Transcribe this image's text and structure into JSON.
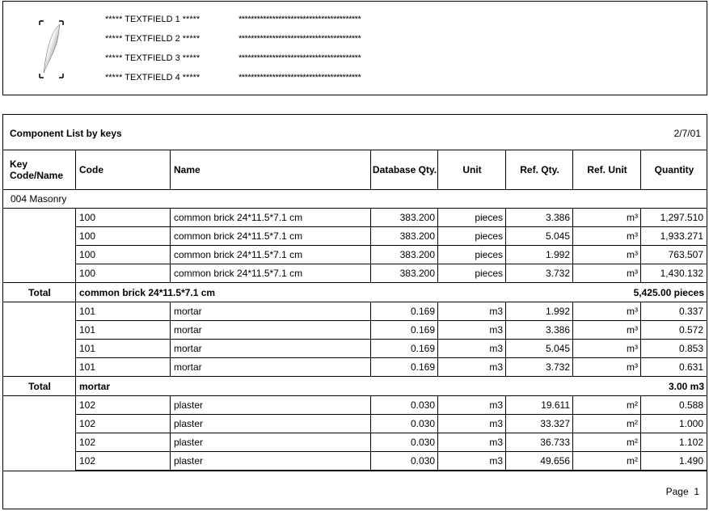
{
  "header": {
    "logo_icon": "feather-quill-icon",
    "fields": [
      {
        "label": "***** TEXTFIELD 1 *****",
        "value": "****************************************"
      },
      {
        "label": "***** TEXTFIELD 2 *****",
        "value": "****************************************"
      },
      {
        "label": "***** TEXTFIELD 3 *****",
        "value": "****************************************"
      },
      {
        "label": "***** TEXTFIELD 4 *****",
        "value": "****************************************"
      }
    ]
  },
  "report": {
    "title": "Component List by keys",
    "date": "2/7/01",
    "columns": [
      "Key Code/Name",
      "Code",
      "Name",
      "Database Qty.",
      "Unit",
      "Ref. Qty.",
      "Ref. Unit",
      "Quantity"
    ],
    "section": "004 Masonry",
    "groups": [
      {
        "rows": [
          [
            "100",
            "common brick 24*11.5*7.1 cm",
            "383.200",
            "pieces",
            "3.386",
            "m³",
            "1,297.510"
          ],
          [
            "100",
            "common brick 24*11.5*7.1 cm",
            "383.200",
            "pieces",
            "5.045",
            "m³",
            "1,933.271"
          ],
          [
            "100",
            "common brick 24*11.5*7.1 cm",
            "383.200",
            "pieces",
            "1.992",
            "m³",
            "763.507"
          ],
          [
            "100",
            "common brick 24*11.5*7.1 cm",
            "383.200",
            "pieces",
            "3.732",
            "m³",
            "1,430.132"
          ]
        ],
        "total_label": "Total",
        "total_name": "common brick 24*11.5*7.1 cm",
        "total_value": "5,425.00 pieces"
      },
      {
        "rows": [
          [
            "101",
            "mortar",
            "0.169",
            "m3",
            "1.992",
            "m³",
            "0.337"
          ],
          [
            "101",
            "mortar",
            "0.169",
            "m3",
            "3.386",
            "m³",
            "0.572"
          ],
          [
            "101",
            "mortar",
            "0.169",
            "m3",
            "5.045",
            "m³",
            "0.853"
          ],
          [
            "101",
            "mortar",
            "0.169",
            "m3",
            "3.732",
            "m³",
            "0.631"
          ]
        ],
        "total_label": "Total",
        "total_name": "mortar",
        "total_value": "3.00 m3"
      },
      {
        "rows": [
          [
            "102",
            "plaster",
            "0.030",
            "m3",
            "19.611",
            "m²",
            "0.588"
          ],
          [
            "102",
            "plaster",
            "0.030",
            "m3",
            "33.327",
            "m²",
            "1.000"
          ],
          [
            "102",
            "plaster",
            "0.030",
            "m3",
            "36.733",
            "m²",
            "1.102"
          ],
          [
            "102",
            "plaster",
            "0.030",
            "m3",
            "49.656",
            "m²",
            "1.490"
          ]
        ]
      }
    ],
    "footer": {
      "page_label": "Page",
      "page_number": "1"
    }
  }
}
